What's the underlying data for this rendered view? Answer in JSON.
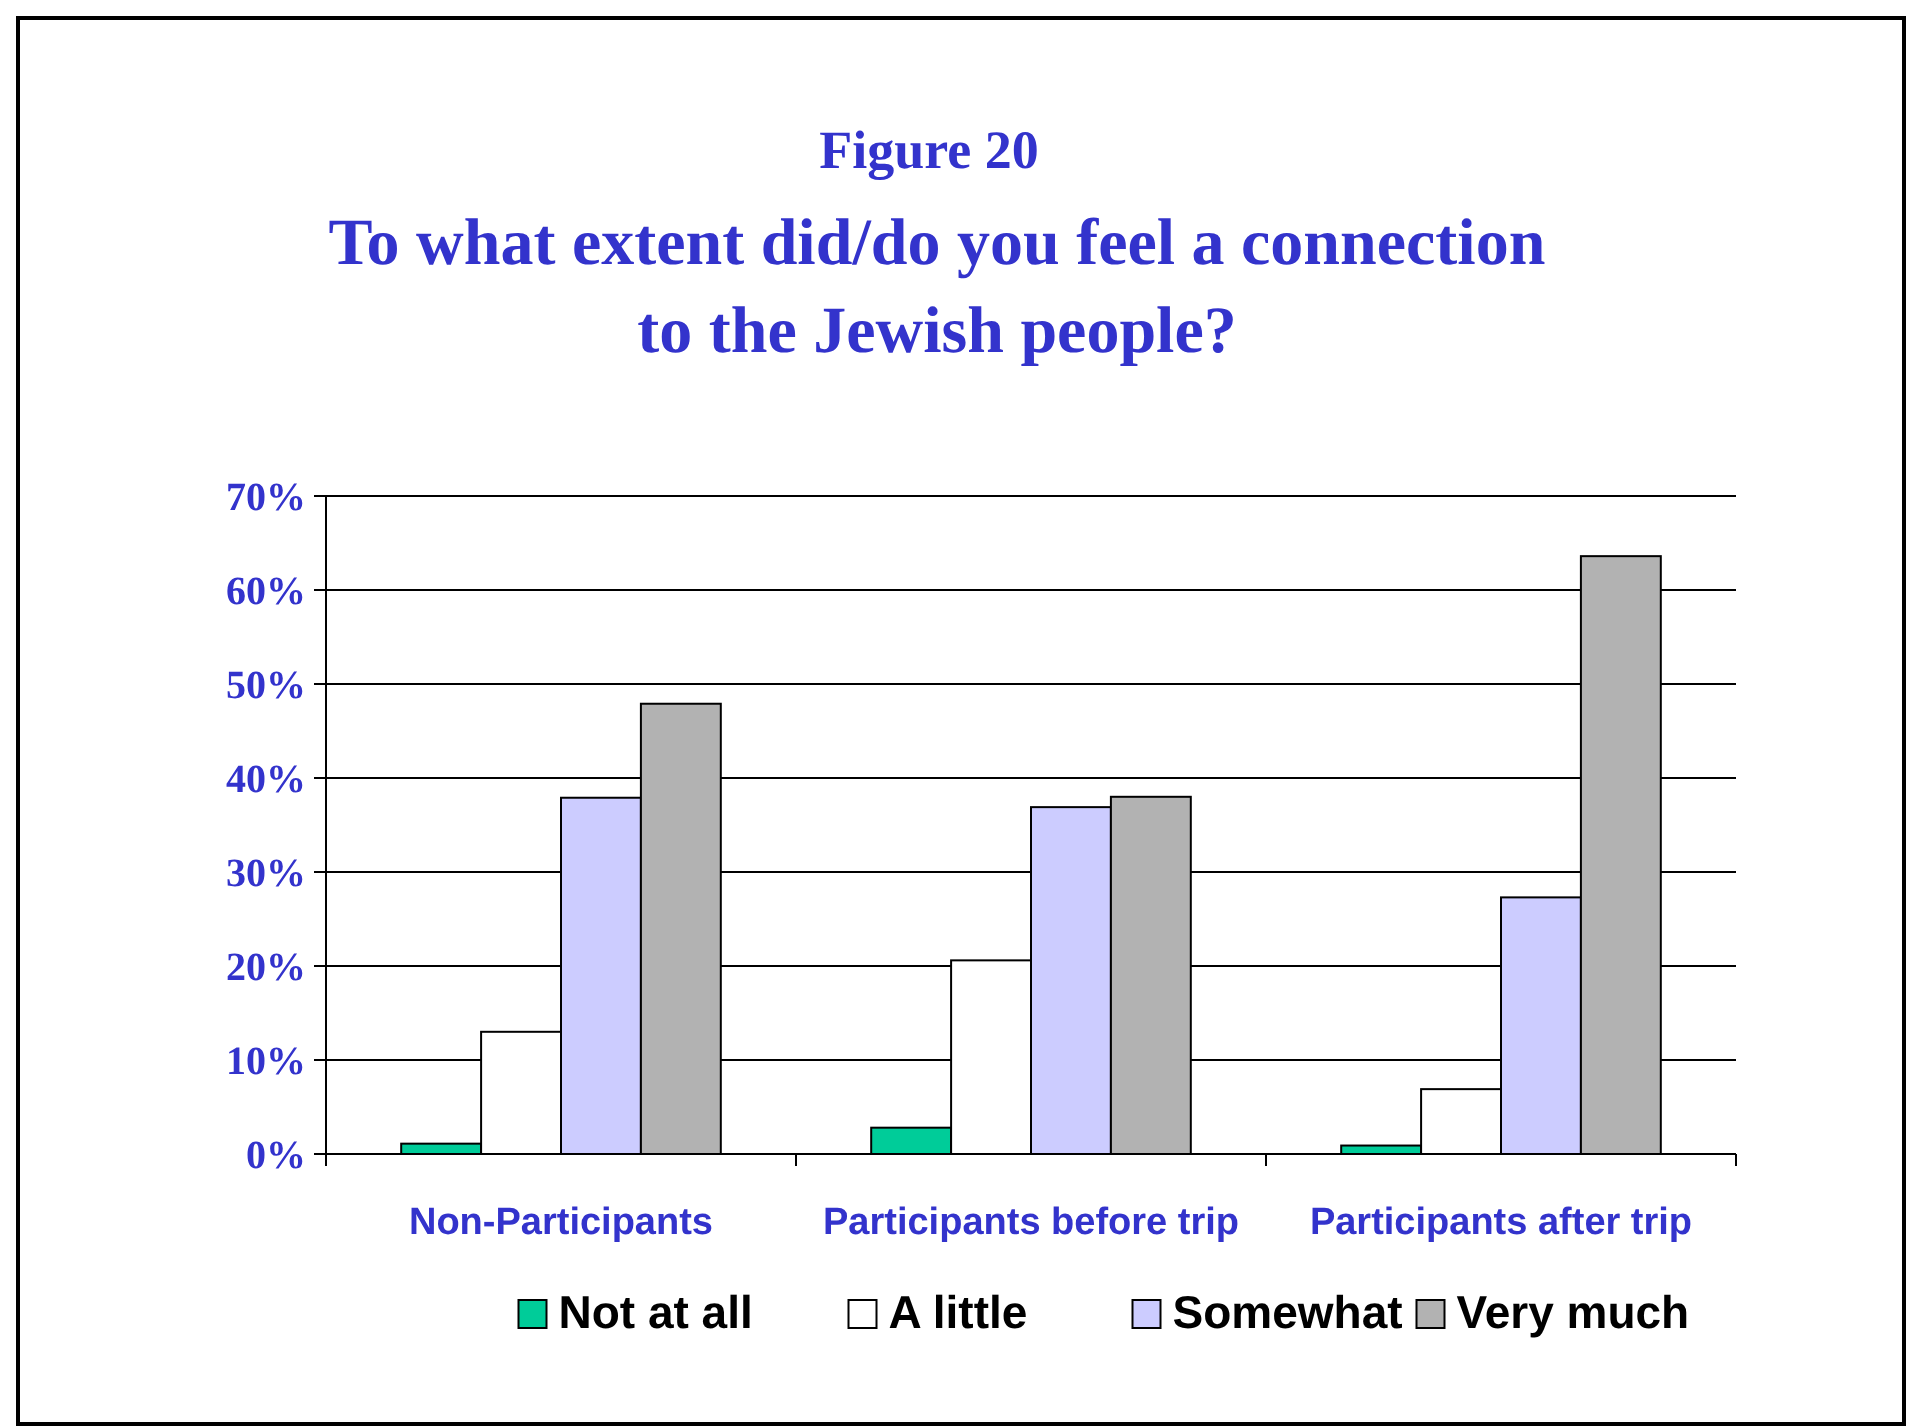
{
  "chart_data": {
    "type": "bar",
    "title": "Figure 20",
    "subtitle": "To what extent did/do you feel a connection to the Jewish people?",
    "categories": [
      "Non-Participants",
      "Participants before trip",
      "Participants after trip"
    ],
    "series": [
      {
        "name": "Not at all",
        "color": "#00cc99",
        "values": [
          1.1,
          2.8,
          0.9
        ]
      },
      {
        "name": "A little",
        "color": "#ffffff",
        "values": [
          13,
          20.6,
          6.9
        ]
      },
      {
        "name": "Somewhat",
        "color": "#ccccff",
        "values": [
          37.9,
          36.9,
          27.3
        ]
      },
      {
        "name": "Very much",
        "color": "#b2b2b2",
        "values": [
          47.9,
          38,
          63.6
        ]
      }
    ],
    "ylim": [
      0,
      70
    ],
    "yticks": [
      {
        "value": 0,
        "label": "0%"
      },
      {
        "value": 10,
        "label": "10%"
      },
      {
        "value": 20,
        "label": "20%"
      },
      {
        "value": 30,
        "label": "30%"
      },
      {
        "value": 40,
        "label": "40%"
      },
      {
        "value": 50,
        "label": "50%"
      },
      {
        "value": 60,
        "label": "60%"
      },
      {
        "value": 70,
        "label": "70%"
      }
    ],
    "grid": "y",
    "legend": "bottom"
  }
}
